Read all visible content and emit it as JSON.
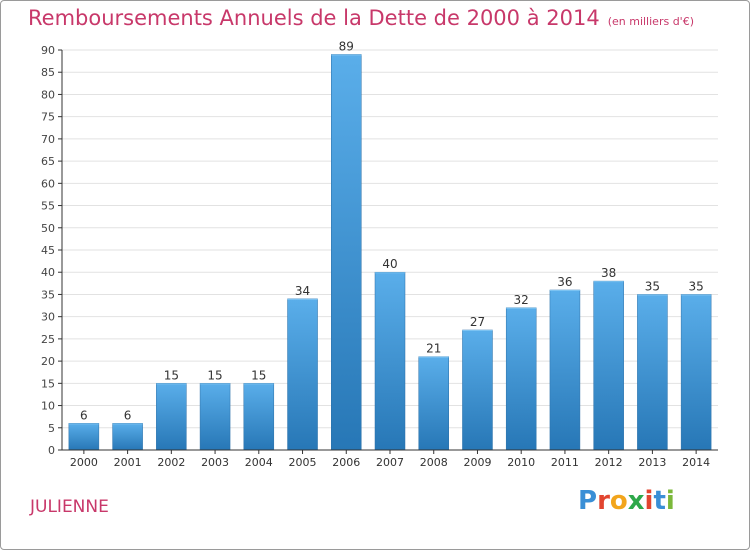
{
  "header": {
    "title": "Remboursements Annuels de la Dette de 2000 à 2014",
    "unit": "(en milliers d'€)"
  },
  "footer": {
    "commune": "JULIENNE",
    "brand": "Proxiti"
  },
  "colors": {
    "title": "#c8386a",
    "bar_top": "#5aaeea",
    "bar_bottom": "#2777b6",
    "axis": "#333333",
    "grid": "#e2e2e2"
  },
  "chart_data": {
    "type": "bar",
    "categories": [
      "2000",
      "2001",
      "2002",
      "2003",
      "2004",
      "2005",
      "2006",
      "2007",
      "2008",
      "2009",
      "2010",
      "2011",
      "2012",
      "2013",
      "2014"
    ],
    "values": [
      6,
      6,
      15,
      15,
      15,
      34,
      89,
      40,
      21,
      27,
      32,
      36,
      38,
      35,
      35
    ],
    "ylim": [
      0,
      90
    ],
    "yticks": [
      0,
      5,
      10,
      15,
      20,
      25,
      30,
      35,
      40,
      45,
      50,
      55,
      60,
      65,
      70,
      75,
      80,
      85,
      90
    ],
    "grid": true,
    "data_labels": true,
    "title": "Remboursements Annuels de la Dette de 2000 à 2014",
    "xlabel": "",
    "ylabel": ""
  }
}
